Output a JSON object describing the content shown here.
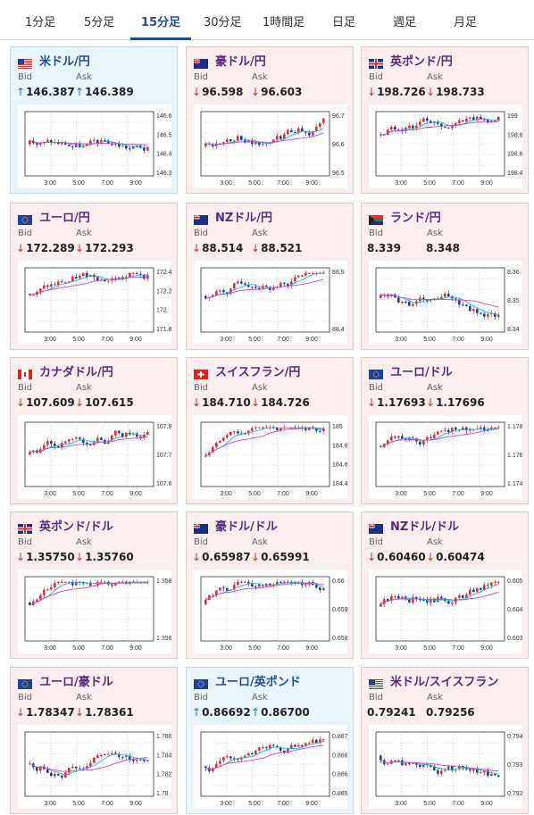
{
  "tabs": [
    {
      "label": "1分足"
    },
    {
      "label": "5分足"
    },
    {
      "label": "15分足"
    },
    {
      "label": "30分足"
    },
    {
      "label": "1時間足"
    },
    {
      "label": "日足"
    },
    {
      "label": "週足"
    },
    {
      "label": "月足"
    }
  ],
  "active_tab": "15分足",
  "labels": {
    "bid": "Bid",
    "ask": "Ask"
  },
  "x_ticks": [
    "3:00",
    "5:00",
    "7:00",
    "9:00"
  ],
  "colors": {
    "up_arrow": "#1e7bc6",
    "down_arrow": "#d03030",
    "title": "#5a2a82",
    "title_up": "#1f4e9c",
    "candle_up": "#e03030",
    "candle_down": "#1f3fa0",
    "ma_short": "#19b6d8",
    "ma_long": "#d23fd6"
  },
  "pairs": [
    {
      "title": "米ドル/円",
      "flag": "us-jp",
      "dir": "up",
      "bid": "146.387",
      "ask": "146.389",
      "ticks": [
        "146.6",
        "146.5",
        "146.4",
        "146.3"
      ]
    },
    {
      "title": "豪ドル/円",
      "flag": "au-jp",
      "dir": "down",
      "bid": "96.598",
      "ask": "96.603",
      "ticks": [
        "96.7",
        "96.6",
        "96.5"
      ]
    },
    {
      "title": "英ポンド/円",
      "flag": "gb-jp",
      "dir": "down",
      "bid": "198.726",
      "ask": "198.733",
      "ticks": [
        "199",
        "198.8",
        "198.6",
        "198.4"
      ]
    },
    {
      "title": "ユーロ/円",
      "flag": "eu-jp",
      "dir": "down",
      "bid": "172.289",
      "ask": "172.293",
      "ticks": [
        "172.4",
        "172.2",
        "172",
        "171.8"
      ]
    },
    {
      "title": "NZドル/円",
      "flag": "nz-jp",
      "dir": "down",
      "bid": "88.514",
      "ask": "88.521",
      "ticks": [
        "88.5",
        "88.4"
      ]
    },
    {
      "title": "ランド/円",
      "flag": "za-jp",
      "dir": "none",
      "bid": "8.339",
      "ask": "8.348",
      "ticks": [
        "8.36",
        "8.35",
        "8.34"
      ]
    },
    {
      "title": "カナダドル/円",
      "flag": "ca-jp",
      "dir": "down",
      "bid": "107.609",
      "ask": "107.615",
      "ticks": [
        "107.8",
        "107.7",
        "107.6"
      ]
    },
    {
      "title": "スイスフラン/円",
      "flag": "ch-jp",
      "dir": "down",
      "bid": "184.710",
      "ask": "184.726",
      "ticks": [
        "185",
        "184.8",
        "184.6",
        "184.4"
      ]
    },
    {
      "title": "ユーロ/ドル",
      "flag": "eu-us",
      "dir": "down",
      "bid": "1.17693",
      "ask": "1.17696",
      "ticks": [
        "1.178",
        "1.176",
        "1.174"
      ]
    },
    {
      "title": "英ポンド/ドル",
      "flag": "gb-us",
      "dir": "down",
      "bid": "1.35750",
      "ask": "1.35760",
      "ticks": [
        "1.358",
        "1.356"
      ]
    },
    {
      "title": "豪ドル/ドル",
      "flag": "au-us",
      "dir": "down",
      "bid": "0.65987",
      "ask": "0.65991",
      "ticks": [
        "0.66",
        "0.659",
        "0.658"
      ]
    },
    {
      "title": "NZドル/ドル",
      "flag": "nz-us",
      "dir": "down",
      "bid": "0.60460",
      "ask": "0.60474",
      "ticks": [
        "0.605",
        "0.604",
        "0.603"
      ]
    },
    {
      "title": "ユーロ/豪ドル",
      "flag": "eu-au",
      "dir": "down",
      "bid": "1.78347",
      "ask": "1.78361",
      "ticks": [
        "1.786",
        "1.784",
        "1.782",
        "1.78"
      ]
    },
    {
      "title": "ユーロ/英ポンド",
      "flag": "eu-gb",
      "dir": "up",
      "bid": "0.86692",
      "ask": "0.86700",
      "ticks": [
        "0.867",
        "0.8665",
        "0.866",
        "0.8655"
      ]
    },
    {
      "title": "米ドル/スイスフラン",
      "flag": "us-ch",
      "dir": "none",
      "bid": "0.79241",
      "ask": "0.79256",
      "ticks": [
        "0.794",
        "0.793",
        "0.792"
      ]
    }
  ]
}
